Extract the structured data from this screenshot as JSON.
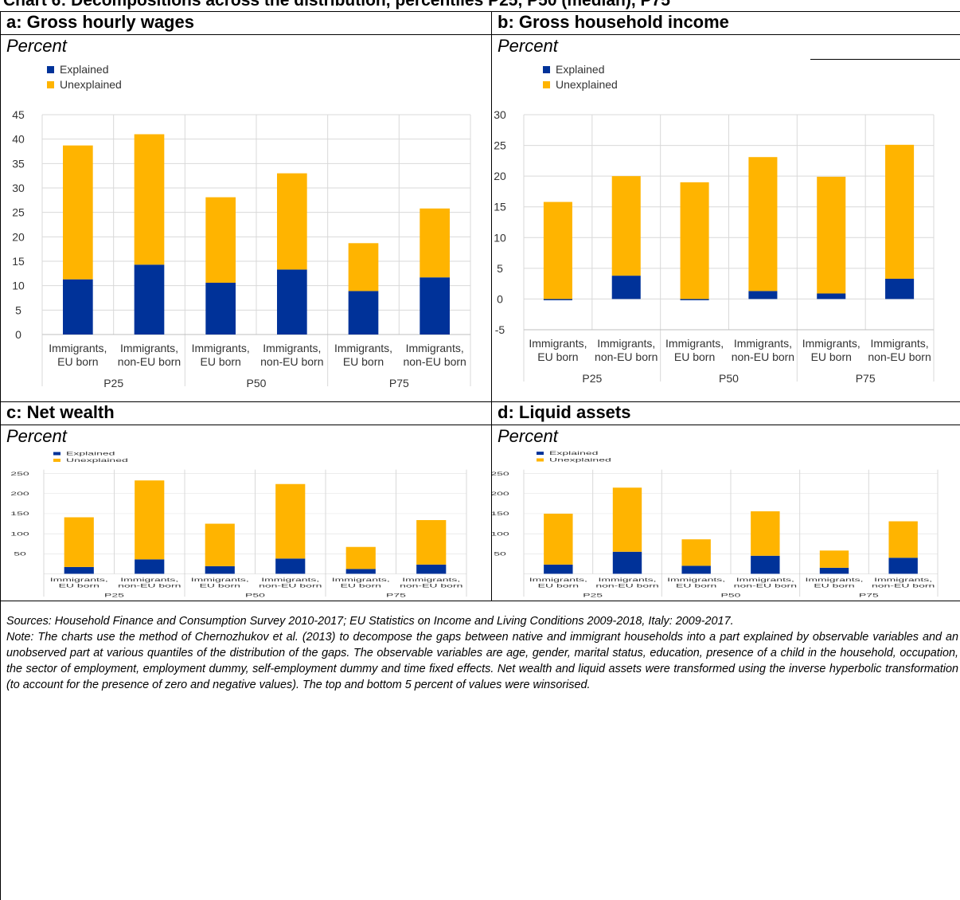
{
  "title": "Chart 6: Decompositions across the distribution, percentiles P25, P50 (median), P75",
  "panels": [
    {
      "title": "a: Gross hourly wages",
      "unit": "Percent"
    },
    {
      "title": "b: Gross household income",
      "unit": "Percent"
    },
    {
      "title": "c: Net wealth",
      "unit": "Percent"
    },
    {
      "title": "d: Liquid assets",
      "unit": "Percent"
    }
  ],
  "notes": {
    "sources": "Sources: Household Finance and Consumption Survey 2010-2017; EU Statistics on Income and Living Conditions 2009-2018, Italy: 2009-2017.",
    "note": "Note: The charts use the method of Chernozhukov et al. (2013) to decompose the gaps between native and immigrant households into a part explained by observable variables and an unobserved part at various quantiles of the distribution of the gaps. The observable variables are age, gender, marital status, education, presence of a child in the household, occupation, the sector of employment, employment dummy, self-employment dummy and time fixed effects. Net wealth and liquid assets were transformed using the inverse hyperbolic transformation (to account for the presence of zero and negative values). The top and bottom 5 percent of values were winsorised."
  },
  "colors": {
    "explained": "#003299",
    "unexplained": "#FFB400",
    "grid": "#d9d9d9",
    "axis": "#bfbfbf"
  },
  "chart_data": [
    {
      "type": "bar",
      "stacked": true,
      "categories": [
        "Immigrants, EU born",
        "Immigrants, non-EU born",
        "Immigrants, EU born",
        "Immigrants, non-EU born",
        "Immigrants, EU born",
        "Immigrants, non-EU born"
      ],
      "groups": [
        "P25",
        "P50",
        "P75"
      ],
      "series": [
        {
          "name": "Explained",
          "values": [
            11.3,
            14.3,
            10.6,
            13.3,
            8.9,
            11.7
          ]
        },
        {
          "name": "Unexplained",
          "values": [
            27.4,
            26.7,
            17.5,
            19.7,
            9.8,
            14.1
          ]
        }
      ],
      "ylim": [
        0,
        45
      ],
      "yticks": [
        0,
        5,
        10,
        15,
        20,
        25,
        30,
        35,
        40,
        45
      ],
      "legend": "top-left",
      "grid": true
    },
    {
      "type": "bar",
      "stacked": true,
      "categories": [
        "Immigrants, EU born",
        "Immigrants, non-EU born",
        "Immigrants, EU born",
        "Immigrants, non-EU born",
        "Immigrants, EU born",
        "Immigrants, non-EU born"
      ],
      "groups": [
        "P25",
        "P50",
        "P75"
      ],
      "series": [
        {
          "name": "Explained",
          "values": [
            -0.2,
            3.8,
            -0.2,
            1.3,
            0.9,
            3.3
          ]
        },
        {
          "name": "Unexplained",
          "values": [
            15.8,
            16.2,
            19.0,
            21.8,
            19.0,
            21.8
          ]
        }
      ],
      "ylim": [
        -5,
        30
      ],
      "yticks": [
        -5,
        0,
        5,
        10,
        15,
        20,
        25,
        30
      ],
      "legend": "top-left",
      "grid": true
    },
    {
      "type": "bar",
      "stacked": true,
      "categories": [
        "Immigrants, EU born",
        "Immigrants, non-EU born",
        "Immigrants, EU born",
        "Immigrants, non-EU born",
        "Immigrants, EU born",
        "Immigrants, non-EU born"
      ],
      "groups": [
        "P25",
        "P50",
        "P75"
      ],
      "series": [
        {
          "name": "Explained",
          "values": [
            17,
            36,
            19,
            38,
            12,
            23
          ]
        },
        {
          "name": "Unexplained",
          "values": [
            124,
            197,
            106,
            186,
            55,
            111
          ]
        }
      ],
      "ylim": [
        0,
        260
      ],
      "yticks": [
        50,
        100,
        150,
        200,
        250
      ],
      "legend": "top-left",
      "grid": true
    },
    {
      "type": "bar",
      "stacked": true,
      "categories": [
        "Immigrants, EU born",
        "Immigrants, non-EU born",
        "Immigrants, EU born",
        "Immigrants, non-EU born",
        "Immigrants, EU born",
        "Immigrants, non-EU born"
      ],
      "groups": [
        "P25",
        "P50",
        "P75"
      ],
      "series": [
        {
          "name": "Explained",
          "values": [
            23,
            55,
            20,
            45,
            15,
            40
          ]
        },
        {
          "name": "Unexplained",
          "values": [
            127,
            160,
            66,
            111,
            43,
            91
          ]
        }
      ],
      "ylim": [
        0,
        260
      ],
      "yticks": [
        50,
        100,
        150,
        200,
        250
      ],
      "legend": "top-left",
      "grid": true
    }
  ]
}
